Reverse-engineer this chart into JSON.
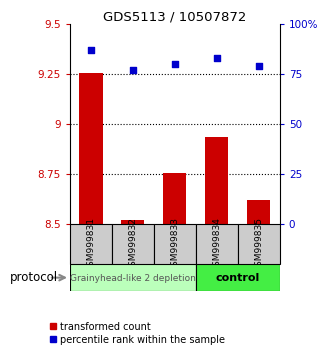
{
  "title": "GDS5113 / 10507872",
  "samples": [
    "GSM999831",
    "GSM999832",
    "GSM999833",
    "GSM999834",
    "GSM999835"
  ],
  "transformed_counts": [
    9.255,
    8.52,
    8.755,
    8.935,
    8.62
  ],
  "percentile_ranks": [
    87,
    77,
    80,
    83,
    79
  ],
  "ylim_left": [
    8.5,
    9.5
  ],
  "ylim_right": [
    0,
    100
  ],
  "yticks_left": [
    8.5,
    8.75,
    9.0,
    9.25,
    9.5
  ],
  "ytick_labels_left": [
    "8.5",
    "8.75",
    "9",
    "9.25",
    "9.5"
  ],
  "yticks_right": [
    0,
    25,
    50,
    75,
    100
  ],
  "ytick_labels_right": [
    "0",
    "25",
    "50",
    "75",
    "100%"
  ],
  "bar_color": "#cc0000",
  "dot_color": "#0000cc",
  "group1_label": "Grainyhead-like 2 depletion",
  "group2_label": "control",
  "group1_color": "#bbffbb",
  "group2_color": "#44ee44",
  "protocol_label": "protocol",
  "legend_bar_label": "transformed count",
  "legend_dot_label": "percentile rank within the sample",
  "tick_color_left": "#cc0000",
  "tick_color_right": "#0000cc",
  "bar_bottom": 8.5,
  "bar_width": 0.55,
  "n_group1": 3,
  "n_group2": 2
}
